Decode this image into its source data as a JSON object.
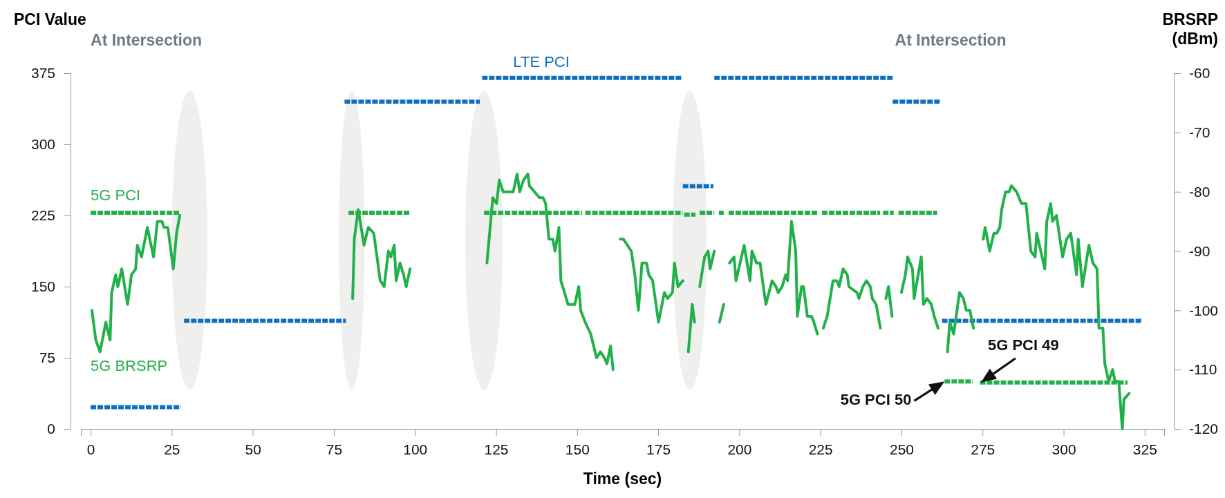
{
  "chart_data": {
    "type": "line",
    "xlabel": "Time (sec)",
    "ylabel": "PCI Value",
    "y2label": "BRSRP (dBm)",
    "xlim": [
      -3,
      331
    ],
    "xticks": [
      0,
      25,
      50,
      75,
      100,
      125,
      150,
      175,
      200,
      225,
      250,
      275,
      300,
      325
    ],
    "ylim": [
      0,
      375
    ],
    "yticks": [
      0,
      75,
      150,
      225,
      300,
      375
    ],
    "y2lim": [
      -120,
      -60
    ],
    "y2ticks": [
      -120,
      -110,
      -100,
      -90,
      -80,
      -70,
      -60
    ],
    "grid": false,
    "bands": [
      {
        "axis": "x",
        "from": 25,
        "to": 36,
        "color": "#efefed"
      },
      {
        "axis": "x",
        "from": 76.5,
        "to": 84.5,
        "color": "#efefed"
      },
      {
        "axis": "x",
        "from": 115.5,
        "to": 127,
        "color": "#efefed"
      },
      {
        "axis": "x",
        "from": 179.5,
        "to": 190,
        "color": "#efefed"
      }
    ],
    "annotations": [
      "At Intersection",
      "At Intersection",
      {
        "text": "5G PCI 50",
        "x": 263.3,
        "y": 50
      },
      {
        "text": "5G PCI 49",
        "x": 274.5,
        "y": 49
      }
    ],
    "series": [
      {
        "name": "LTE PCI",
        "color": "#0e6fbe",
        "line_style": "dashed",
        "x": [
          0,
          27.8,
          28.3,
          28.8,
          78.7,
          78.5,
          78.3,
          120,
          120.3,
          120.7,
          182.2,
          182.4,
          182.6,
          192,
          192.1,
          192.3,
          247.6,
          247.4,
          247.3,
          262.2,
          262.3,
          262.5,
          324
        ],
        "values": [
          23,
          23,
          null,
          114,
          114,
          null,
          345,
          345,
          null,
          370,
          370,
          null,
          256,
          256,
          null,
          370,
          370,
          null,
          345,
          345,
          null,
          114,
          114
        ]
      },
      {
        "name": "5G PCI",
        "color": "#22b04b",
        "line_style": "dashed",
        "x": [
          0,
          27.5,
          53,
          79.5,
          98.3,
          110,
          121.3,
          151.5,
          152,
          152.5,
          182.5,
          182.8,
          183,
          186.5,
          187,
          187.8,
          192.3,
          193,
          193.7,
          195.2,
          196,
          196.7,
          224.1,
          224.8,
          225.5,
          243.4,
          243.8,
          244.3,
          247.6,
          248.3,
          249.1,
          261,
          262.3,
          263.3,
          272,
          273.2,
          274.2,
          319.7
        ],
        "values": [
          228,
          228,
          null,
          228,
          228,
          null,
          228,
          228,
          null,
          228,
          228,
          null,
          226,
          226,
          null,
          228,
          228,
          null,
          228,
          228,
          null,
          228,
          228,
          null,
          228,
          228,
          null,
          228,
          228,
          null,
          228,
          228,
          null,
          50,
          50,
          null,
          49,
          49
        ]
      },
      {
        "name": "5G BRSRP",
        "color": "#22b04b",
        "line_style": "solid",
        "axis": "y2",
        "x": [
          0.4,
          1.6,
          2.9,
          4.7,
          6.0,
          6.5,
          7.7,
          8.4,
          9.6,
          11.4,
          12.6,
          13.9,
          14.4,
          15.7,
          17.5,
          19.4,
          20.6,
          22.0,
          22.6,
          23.8,
          25.5,
          26.5,
          27.5,
          50,
          80.8,
          81.3,
          82.5,
          84.3,
          85.6,
          87.3,
          89.3,
          90.5,
          91.8,
          92.6,
          93.6,
          94.2,
          95.4,
          96.5,
          97.3,
          98.5,
          110,
          122.2,
          124.0,
          125.2,
          126.0,
          127.2,
          128.4,
          129.2,
          130.3,
          131.5,
          132.3,
          133.5,
          134.8,
          135.3,
          138.4,
          139.5,
          140.3,
          141.3,
          142.5,
          143.2,
          144.4,
          145.0,
          147.2,
          148.2,
          149.3,
          150.5,
          151.1,
          152.5,
          154.2,
          156.0,
          157.2,
          158.4,
          159.2,
          160.3,
          161.1,
          162.2,
          163.3,
          164.3,
          165.5,
          166.7,
          167.8,
          168.9,
          170.0,
          171.4,
          172.1,
          173.3,
          175.1,
          176.9,
          177.9,
          179.4,
          180.0,
          181.1,
          182.6,
          183.5,
          184.3,
          185.5,
          186.2,
          187,
          187.8,
          189.3,
          190.4,
          191.0,
          192.3,
          193.1,
          193.9,
          195.2,
          196.1,
          197.0,
          198.4,
          199.0,
          201.5,
          203.3,
          203.9,
          205.3,
          206.4,
          208.2,
          210.1,
          211.3,
          212.0,
          213.2,
          214.3,
          214.9,
          216.1,
          217.4,
          217.9,
          219.2,
          219.8,
          221.0,
          222.3,
          223.0,
          224.1,
          225.0,
          225.9,
          227.1,
          228.9,
          230.1,
          230.8,
          232.0,
          233.3,
          233.8,
          236.3,
          236.9,
          238.1,
          239.2,
          240.4,
          241.0,
          242.2,
          243.5,
          244.4,
          245.2,
          246.0,
          247.1,
          248.5,
          250.0,
          251.2,
          251.9,
          253.4,
          253.9,
          256.1,
          256.8,
          257.9,
          259.2,
          260.1,
          261.3,
          262.8,
          264.2,
          264.9,
          266.1,
          267.9,
          269.1,
          270.0,
          271.1,
          272.2,
          273.7,
          275.2,
          275.8,
          277.2,
          278.5,
          279.4,
          280.3,
          280.9,
          282.1,
          283.2,
          283.9,
          285.5,
          287.0,
          288.4,
          289.9,
          291.2,
          291.7,
          294.2,
          294.8,
          296.0,
          296.6,
          297.8,
          299.7,
          300.9,
          302.2,
          304.0,
          304.5,
          305.8,
          307.8,
          309.0,
          310.3,
          310.9,
          312.1,
          312.7,
          313.9,
          315.1,
          315.9,
          317.0,
          318.1,
          318.6,
          320.2
        ],
        "values": [
          -100,
          -105,
          -107,
          -102,
          -105,
          -97,
          -94,
          -96,
          -93,
          -99,
          -94,
          -93,
          -89,
          -91,
          -86,
          -91,
          -85,
          -85,
          -86,
          -86,
          -93,
          -87,
          -84,
          null,
          -98,
          -88,
          -83,
          -89,
          -86,
          -87,
          -95,
          -96,
          -90,
          -91,
          -89,
          -95,
          -92,
          -94,
          -96,
          -93,
          null,
          -92,
          -81,
          -82,
          -78,
          -80,
          -80,
          -80,
          -80,
          -77,
          -80,
          -78,
          -77,
          -79,
          -81,
          -81,
          -82,
          -88,
          -88,
          -90,
          -86,
          -95,
          -99,
          -99,
          -99,
          -96,
          -100,
          -102,
          -104,
          -108,
          -107,
          -108,
          -109,
          -106,
          -110,
          null,
          -88,
          -88,
          -89,
          -90,
          -94,
          -100,
          -92,
          -92,
          -94,
          -95,
          -102,
          -97,
          -98,
          -97,
          -92,
          -96,
          -95,
          null,
          -107,
          -99,
          -102,
          null,
          -96,
          -91,
          -90,
          -93,
          -90,
          null,
          -102,
          -99,
          null,
          -92,
          -91,
          -95,
          -89,
          -95,
          -90,
          -92,
          -92,
          -99,
          -95,
          -96,
          -97,
          -96,
          -94,
          -95,
          -85,
          -90,
          -101,
          -96,
          -96,
          -101,
          -101,
          -102,
          -104,
          null,
          -103,
          -101,
          -95,
          -95,
          -96,
          -93,
          -94,
          -96,
          -97,
          -98,
          -96,
          -95,
          -96,
          -98,
          -99,
          -103,
          null,
          -98,
          -96,
          -101,
          null,
          -97,
          -94,
          -91,
          -93,
          -98,
          -91,
          -99,
          -98,
          -99,
          -101,
          -103,
          null,
          -107,
          -102,
          -104,
          -97,
          -98,
          -100,
          -100,
          -103,
          null,
          -88,
          -86,
          -90,
          -87,
          -87,
          -86,
          -83,
          -80,
          -80,
          -79,
          -80,
          -82,
          -82,
          -90,
          -91,
          -87,
          -93,
          -85,
          -82,
          -85,
          -84,
          -91,
          -88,
          -87,
          -94,
          -88,
          -96,
          -89,
          -92,
          -93,
          -103,
          -103,
          -109,
          -112,
          -110,
          -112,
          -112,
          -120,
          -115,
          -114
        ]
      }
    ]
  }
}
